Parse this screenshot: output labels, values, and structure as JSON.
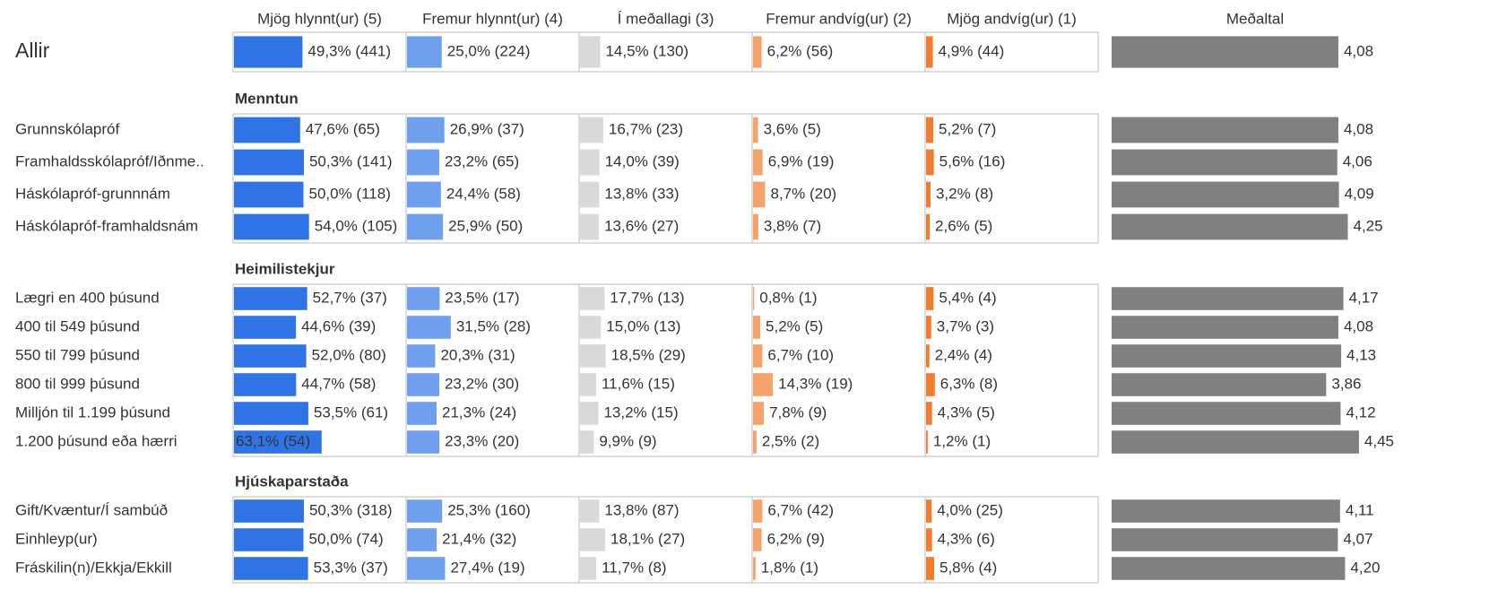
{
  "chart_data": {
    "type": "bar",
    "columns": [
      "Mjög hlynnt(ur) (5)",
      "Fremur hlynnt(ur) (4)",
      "Í meðallagi (3)",
      "Fremur andvíg(ur) (2)",
      "Mjög andvíg(ur) (1)"
    ],
    "colors": [
      "#2f74e6",
      "#6fa0ee",
      "#d9d9d9",
      "#f4a36a",
      "#f47a2c"
    ],
    "mean_header": "Meðaltal",
    "mean_color": "#808080",
    "xlim": [
      0,
      100
    ],
    "mean_xlim": [
      0,
      5
    ],
    "groups": [
      {
        "rows": [
          {
            "label": "Allir",
            "values": [
              49.3,
              25.0,
              14.5,
              6.2,
              4.9
            ],
            "value_labels": [
              "49,3% (441)",
              "25,0% (224)",
              "14,5% (130)",
              "6,2% (56)",
              "4,9% (44)"
            ],
            "mean": 4.08,
            "mean_label": "4,08"
          }
        ]
      },
      {
        "title": "Menntun",
        "rows": [
          {
            "label": "Grunnskólapróf",
            "values": [
              47.6,
              26.9,
              16.7,
              3.6,
              5.2
            ],
            "value_labels": [
              "47,6% (65)",
              "26,9% (37)",
              "16,7% (23)",
              "3,6% (5)",
              "5,2% (7)"
            ],
            "mean": 4.08,
            "mean_label": "4,08"
          },
          {
            "label": "Framhaldsskólapróf/Iðnme..",
            "values": [
              50.3,
              23.2,
              14.0,
              6.9,
              5.6
            ],
            "value_labels": [
              "50,3% (141)",
              "23,2% (65)",
              "14,0% (39)",
              "6,9% (19)",
              "5,6% (16)"
            ],
            "mean": 4.06,
            "mean_label": "4,06"
          },
          {
            "label": "Háskólapróf-grunnnám",
            "values": [
              50.0,
              24.4,
              13.8,
              8.7,
              3.2
            ],
            "value_labels": [
              "50,0% (118)",
              "24,4% (58)",
              "13,8% (33)",
              "8,7% (20)",
              "3,2% (8)"
            ],
            "mean": 4.09,
            "mean_label": "4,09"
          },
          {
            "label": "Háskólapróf-framhaldsnám",
            "values": [
              54.0,
              25.9,
              13.6,
              3.8,
              2.6
            ],
            "value_labels": [
              "54,0% (105)",
              "25,9% (50)",
              "13,6% (27)",
              "3,8% (7)",
              "2,6% (5)"
            ],
            "mean": 4.25,
            "mean_label": "4,25"
          }
        ]
      },
      {
        "title": "Heimilistekjur",
        "rows": [
          {
            "label": "Lægri en 400 þúsund",
            "values": [
              52.7,
              23.5,
              17.7,
              0.8,
              5.4
            ],
            "value_labels": [
              "52,7% (37)",
              "23,5% (17)",
              "17,7% (13)",
              "0,8% (1)",
              "5,4% (4)"
            ],
            "mean": 4.17,
            "mean_label": "4,17"
          },
          {
            "label": "400 til 549 þúsund",
            "values": [
              44.6,
              31.5,
              15.0,
              5.2,
              3.7
            ],
            "value_labels": [
              "44,6% (39)",
              "31,5% (28)",
              "15,0% (13)",
              "5,2% (5)",
              "3,7% (3)"
            ],
            "mean": 4.08,
            "mean_label": "4,08"
          },
          {
            "label": "550 til 799 þúsund",
            "values": [
              52.0,
              20.3,
              18.5,
              6.7,
              2.4
            ],
            "value_labels": [
              "52,0% (80)",
              "20,3% (31)",
              "18,5% (29)",
              "6,7% (10)",
              "2,4% (4)"
            ],
            "mean": 4.13,
            "mean_label": "4,13"
          },
          {
            "label": "800 til 999 þúsund",
            "values": [
              44.7,
              23.2,
              11.6,
              14.3,
              6.3
            ],
            "value_labels": [
              "44,7% (58)",
              "23,2% (30)",
              "11,6% (15)",
              "14,3% (19)",
              "6,3% (8)"
            ],
            "mean": 3.86,
            "mean_label": "3,86"
          },
          {
            "label": "Milljón til 1.199 þúsund",
            "values": [
              53.5,
              21.3,
              13.2,
              7.8,
              4.3
            ],
            "value_labels": [
              "53,5% (61)",
              "21,3% (24)",
              "13,2% (15)",
              "7,8% (9)",
              "4,3% (5)"
            ],
            "mean": 4.12,
            "mean_label": "4,12"
          },
          {
            "label": "1.200 þúsund eða hærri",
            "values": [
              63.1,
              23.3,
              9.9,
              2.5,
              1.2
            ],
            "value_labels": [
              "63,1% (54)",
              "23,3% (20)",
              "9,9% (9)",
              "2,5% (2)",
              "1,2% (1)"
            ],
            "mean": 4.45,
            "mean_label": "4,45"
          }
        ]
      },
      {
        "title": "Hjúskaparstaða",
        "rows": [
          {
            "label": "Gift/Kvæntur/Í sambúð",
            "values": [
              50.3,
              25.3,
              13.8,
              6.7,
              4.0
            ],
            "value_labels": [
              "50,3% (318)",
              "25,3% (160)",
              "13,8% (87)",
              "6,7% (42)",
              "4,0% (25)"
            ],
            "mean": 4.11,
            "mean_label": "4,11"
          },
          {
            "label": "Einhleyp(ur)",
            "values": [
              50.0,
              21.4,
              18.1,
              6.2,
              4.3
            ],
            "value_labels": [
              "50,0% (74)",
              "21,4% (32)",
              "18,1% (27)",
              "6,2% (9)",
              "4,3% (6)"
            ],
            "mean": 4.07,
            "mean_label": "4,07"
          },
          {
            "label": "Fráskilin(n)/Ekkja/Ekkill",
            "values": [
              53.3,
              27.4,
              11.7,
              1.8,
              5.8
            ],
            "value_labels": [
              "53,3% (37)",
              "27,4% (19)",
              "11,7% (8)",
              "1,8% (1)",
              "5,8% (4)"
            ],
            "mean": 4.2,
            "mean_label": "4,20"
          }
        ]
      }
    ]
  }
}
